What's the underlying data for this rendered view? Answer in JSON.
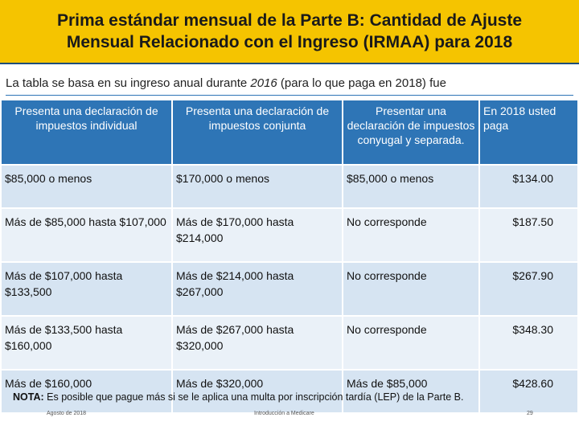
{
  "header": {
    "title_line1": "Prima estándar mensual de la Parte B: Cantidad de Ajuste",
    "title_line2": "Mensual Relacionado con el Ingreso (IRMAA) para 2018"
  },
  "intro": {
    "prefix": "La tabla se basa en su ingreso anual durante ",
    "year_italic": "2016",
    "suffix": " (para lo que paga en 2018) fue"
  },
  "table": {
    "headers": [
      "Presenta una declaración de impuestos individual",
      "Presenta una declaración de impuestos conjunta",
      "Presentar una declaración de impuestos conyugal y separada.",
      "En 2018 usted paga"
    ],
    "rows": [
      [
        "$85,000 o menos",
        "$170,000 o menos",
        "$85,000 o menos",
        "$134.00"
      ],
      [
        "Más de $85,000 hasta $107,000",
        "Más de $170,000 hasta $214,000",
        "No corresponde",
        "$187.50"
      ],
      [
        "Más de $107,000 hasta $133,500",
        "Más de $214,000 hasta $267,000",
        "No corresponde",
        "$267.90"
      ],
      [
        "Más de $133,500 hasta $160,000",
        "Más de $267,000 hasta $320,000",
        "No corresponde",
        "$348.30"
      ],
      [
        "Más de $160,000",
        "Más de $320,000",
        "Más de $85,000",
        "$428.60"
      ]
    ]
  },
  "note": {
    "label": "NOTA:",
    "text": " Es posible que pague más si se le aplica una multa por inscripción tardía (LEP) de la Parte B."
  },
  "footer": {
    "date": "Agosto de 2018",
    "center": "Introducción a Medicare",
    "page": "29"
  },
  "colors": {
    "title_bg": "#f5c400",
    "header_bg": "#2e75b6",
    "row_dark": "#d6e4f2",
    "row_light": "#eaf1f8"
  }
}
